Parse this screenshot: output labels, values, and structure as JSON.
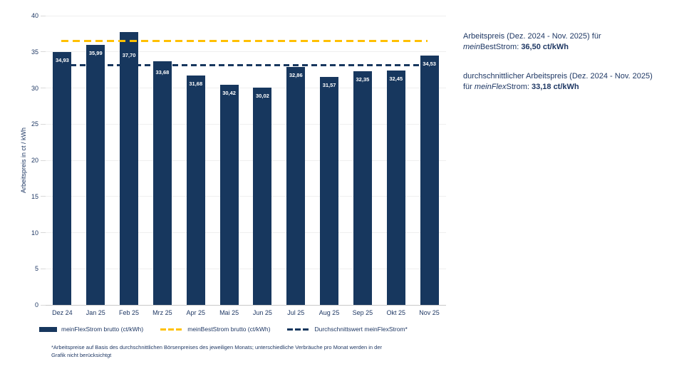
{
  "chart_data": {
    "type": "bar",
    "title": "",
    "categories": [
      "Dez 24",
      "Jan 25",
      "Feb 25",
      "Mrz 25",
      "Apr 25",
      "Mai 25",
      "Jun 25",
      "Jul 25",
      "Aug 25",
      "Sep 25",
      "Okt 25",
      "Nov 25"
    ],
    "series": [
      {
        "name": "meinFlexStrom brutto (ct/kWh)",
        "color": "#17375E",
        "values": [
          34.93,
          35.99,
          37.7,
          33.68,
          31.68,
          30.42,
          30.02,
          32.86,
          31.57,
          32.35,
          32.45,
          34.53
        ]
      }
    ],
    "value_labels": [
      "34,93",
      "35,99",
      "37,70",
      "33,68",
      "31,68",
      "30,42",
      "30,02",
      "32,86",
      "31,57",
      "32,35",
      "32,45",
      "34,53"
    ],
    "reference_lines": [
      {
        "name": "meinBestStrom brutto (ct/kWh)",
        "value": 36.5,
        "display": "36,50 ct/kWh",
        "color": "#FFC000",
        "style": "dashed"
      },
      {
        "name": "Durchschnittswert meinFlexStrom*",
        "value": 33.18,
        "display": "33,18 ct/kWh",
        "color": "#17375E",
        "style": "dashed"
      }
    ],
    "xlabel": "",
    "ylabel": "Arbeitspreis in ct / kWh",
    "ylim": [
      0,
      40
    ],
    "yticks": [
      0,
      5,
      10,
      15,
      20,
      25,
      30,
      35,
      40
    ],
    "grid": true,
    "legend_position": "bottom"
  },
  "legend": {
    "items": [
      {
        "label": "meinFlexStrom brutto (ct/kWh)",
        "swatch": "solid",
        "color": "#17375E"
      },
      {
        "label": "meinBestStrom brutto (ct/kWh)",
        "swatch": "dashed",
        "color": "#FFC000"
      },
      {
        "label": "Durchschnittswert meinFlexStrom*",
        "swatch": "dashed",
        "color": "#17375E"
      }
    ]
  },
  "annotations": {
    "best": {
      "line1": "Arbeitspreis (Dez. 2024 - Nov. 2025) für",
      "italic": "mein",
      "mid": "BestStrom: ",
      "bold": "36,50 ct/kWh"
    },
    "flex": {
      "line1": "durchschnittlicher Arbeitspreis (Dez. 2024 - Nov. 2025)",
      "pre": "für ",
      "italic": "meinFlex",
      "mid": "Strom: ",
      "bold": "33,18 ct/kWh"
    }
  },
  "footnote": {
    "line1": "*Arbeitspreise auf Basis des durchschnittlichen Börsenpreises des jeweiligen Monats; unterschiedliche Verbräuche pro Monat werden in der",
    "line2": "Grafik nicht berücksichtgt"
  },
  "colors": {
    "bar_navy": "#17375E",
    "accent_yellow": "#FFC000",
    "text_navy": "#1F3864"
  }
}
